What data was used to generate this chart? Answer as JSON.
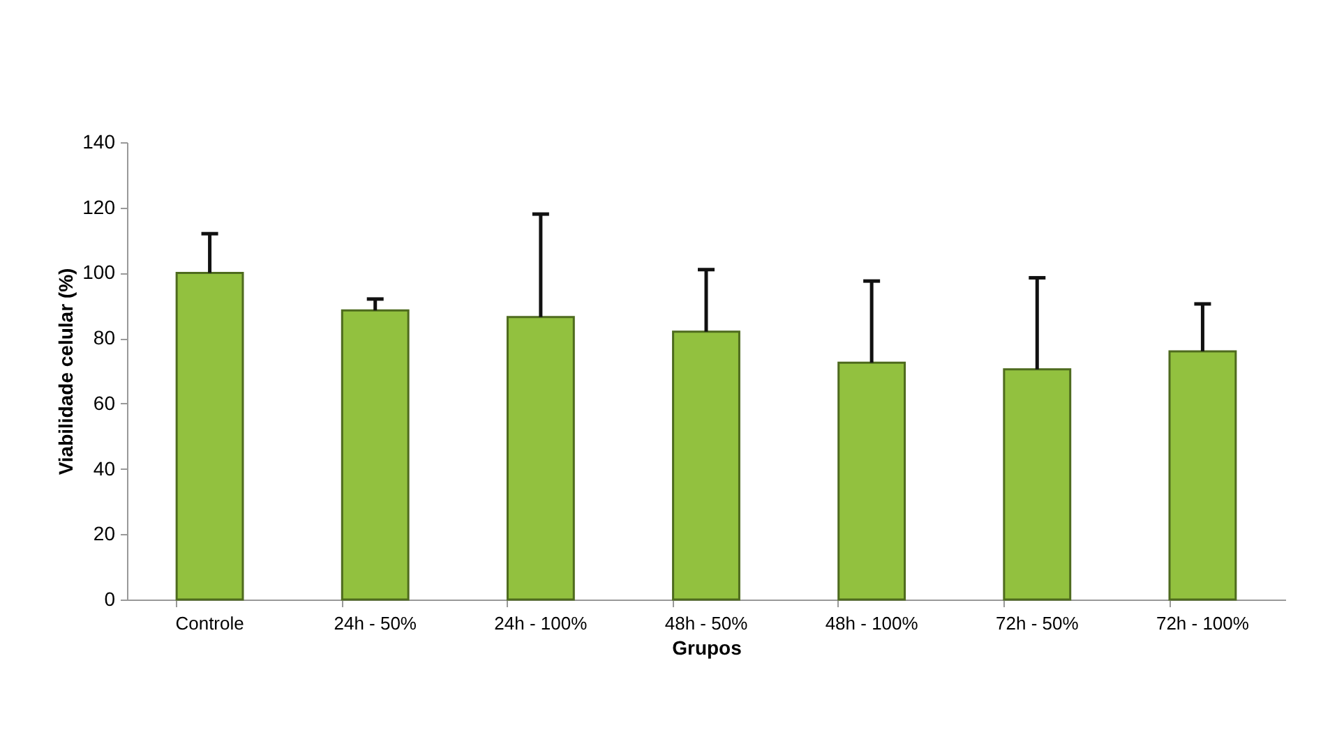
{
  "chart_data": {
    "type": "bar",
    "xlabel": "Grupos",
    "ylabel": "Viabilidade celular (%)",
    "categories": [
      "Controle",
      "24h - 50%",
      "24h - 100%",
      "48h - 50%",
      "48h - 100%",
      "72h - 50%",
      "72h - 100%"
    ],
    "values": [
      100,
      88.5,
      86.5,
      82,
      72.5,
      70.5,
      76
    ],
    "errors": [
      [
        100,
        112
      ],
      [
        88.5,
        92
      ],
      [
        86.5,
        118
      ],
      [
        82,
        101
      ],
      [
        72.5,
        97.5
      ],
      [
        70.5,
        98.5
      ],
      [
        76,
        90.5
      ]
    ],
    "color": "#92c13f",
    "ylim": [
      0,
      140
    ],
    "yticks": [
      0,
      20,
      40,
      60,
      80,
      100,
      120,
      140
    ],
    "grid": false
  }
}
